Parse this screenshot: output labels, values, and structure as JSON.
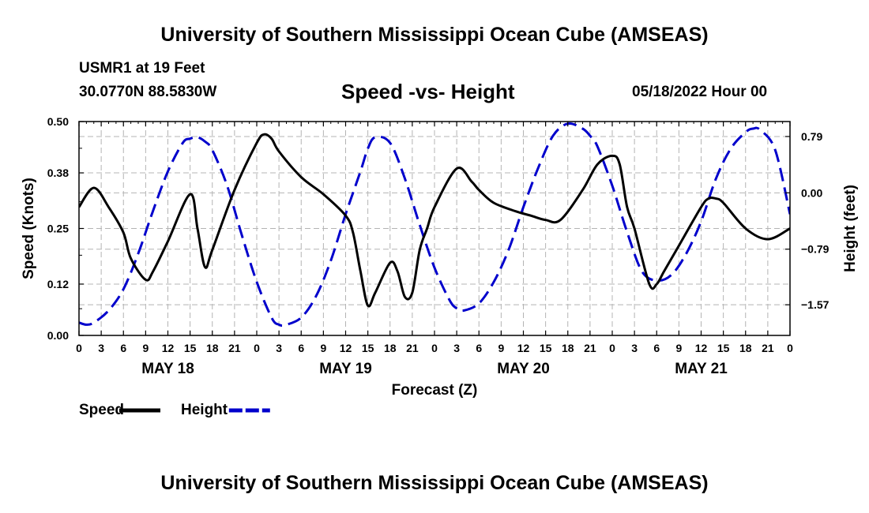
{
  "header": {
    "title": "University of Southern Mississippi Ocean Cube (AMSEAS)",
    "station": "USMR1 at 19 Feet",
    "coords": "30.0770N  88.5830W",
    "subtitle": "Speed -vs- Height",
    "datetime": "05/18/2022 Hour 00",
    "footer_title": "University of Southern Mississippi Ocean Cube (AMSEAS)"
  },
  "chart_data": {
    "type": "line",
    "title": "Speed -vs- Height",
    "xlabel": "Forecast (Z)",
    "ylabel": "Speed (Knots)",
    "y2label": "Height (feet)",
    "grid": true,
    "xlim": [
      0,
      96
    ],
    "ylim": [
      0,
      0.5
    ],
    "y2lim": [
      -2.0,
      1.0
    ],
    "x_tick_hours": [
      0,
      3,
      6,
      9,
      12,
      15,
      18,
      21,
      24,
      27,
      30,
      33,
      36,
      39,
      42,
      45,
      48,
      51,
      54,
      57,
      60,
      63,
      66,
      69,
      72,
      75,
      78,
      81,
      84,
      87,
      90,
      93,
      96
    ],
    "x_tick_labels": [
      "0",
      "3",
      "6",
      "9",
      "12",
      "15",
      "18",
      "21",
      "0",
      "3",
      "6",
      "9",
      "12",
      "15",
      "18",
      "21",
      "0",
      "3",
      "6",
      "9",
      "12",
      "15",
      "18",
      "21",
      "0",
      "3",
      "6",
      "9",
      "12",
      "15",
      "18",
      "21",
      "0"
    ],
    "day_labels": [
      {
        "text": "MAY 18",
        "hour": 12
      },
      {
        "text": "MAY 19",
        "hour": 36
      },
      {
        "text": "MAY 20",
        "hour": 60
      },
      {
        "text": "MAY 21",
        "hour": 84
      }
    ],
    "y_ticks": [
      0.0,
      0.12,
      0.25,
      0.38,
      0.5
    ],
    "y_tick_labels": [
      "0.00",
      "0.12",
      "0.25",
      "0.38",
      "0.50"
    ],
    "y2_ticks": [
      0.79,
      0.0,
      -0.79,
      -1.57
    ],
    "y2_tick_labels": [
      "0.79",
      "0.00",
      "−0.79",
      "−1.57"
    ],
    "legend_position": "bottom-left",
    "series": [
      {
        "name": "Speed",
        "axis": "left",
        "color": "#000000",
        "style": "solid",
        "x": [
          0,
          2,
          4,
          6,
          7,
          9,
          10,
          12,
          15,
          16,
          17,
          18,
          21,
          24,
          25,
          26,
          27,
          30,
          33,
          36,
          37,
          38,
          39,
          40,
          42,
          43,
          44,
          45,
          46,
          47,
          48,
          51,
          53,
          54,
          56,
          59,
          61,
          63,
          65,
          68,
          70,
          72,
          73,
          74,
          75,
          77,
          78,
          79,
          81,
          84,
          85,
          86,
          87,
          90,
          93,
          96
        ],
        "y": [
          0.3,
          0.345,
          0.3,
          0.24,
          0.18,
          0.13,
          0.15,
          0.22,
          0.33,
          0.25,
          0.16,
          0.2,
          0.34,
          0.45,
          0.47,
          0.46,
          0.43,
          0.37,
          0.33,
          0.28,
          0.24,
          0.15,
          0.07,
          0.1,
          0.17,
          0.15,
          0.09,
          0.1,
          0.2,
          0.25,
          0.3,
          0.39,
          0.36,
          0.34,
          0.31,
          0.29,
          0.28,
          0.27,
          0.27,
          0.34,
          0.4,
          0.42,
          0.4,
          0.3,
          0.25,
          0.12,
          0.12,
          0.15,
          0.21,
          0.3,
          0.32,
          0.32,
          0.31,
          0.25,
          0.225,
          0.25
        ]
      },
      {
        "name": "Height",
        "axis": "right",
        "color": "#0000cc",
        "style": "dashed",
        "x": [
          0,
          1,
          2,
          4,
          6,
          8,
          10,
          12,
          14,
          15,
          16,
          17,
          18,
          20,
          22,
          24,
          26,
          27,
          28,
          30,
          32,
          34,
          36,
          38,
          39,
          40,
          42,
          44,
          46,
          48,
          50,
          51,
          52,
          54,
          56,
          58,
          60,
          62,
          64,
          66,
          68,
          69,
          70,
          72,
          74,
          76,
          78,
          80,
          82,
          84,
          86,
          88,
          90,
          91,
          92,
          94,
          96
        ],
        "y": [
          -1.82,
          -1.85,
          -1.82,
          -1.65,
          -1.35,
          -0.85,
          -0.25,
          0.3,
          0.7,
          0.76,
          0.78,
          0.72,
          0.6,
          0.1,
          -0.6,
          -1.25,
          -1.75,
          -1.85,
          -1.85,
          -1.75,
          -1.45,
          -0.95,
          -0.3,
          0.3,
          0.62,
          0.78,
          0.7,
          0.2,
          -0.45,
          -1.05,
          -1.5,
          -1.62,
          -1.65,
          -1.55,
          -1.25,
          -0.8,
          -0.2,
          0.35,
          0.8,
          0.97,
          0.9,
          0.8,
          0.65,
          0.1,
          -0.55,
          -1.1,
          -1.23,
          -1.15,
          -0.85,
          -0.4,
          0.2,
          0.62,
          0.85,
          0.9,
          0.88,
          0.6,
          -0.3
        ]
      }
    ]
  }
}
